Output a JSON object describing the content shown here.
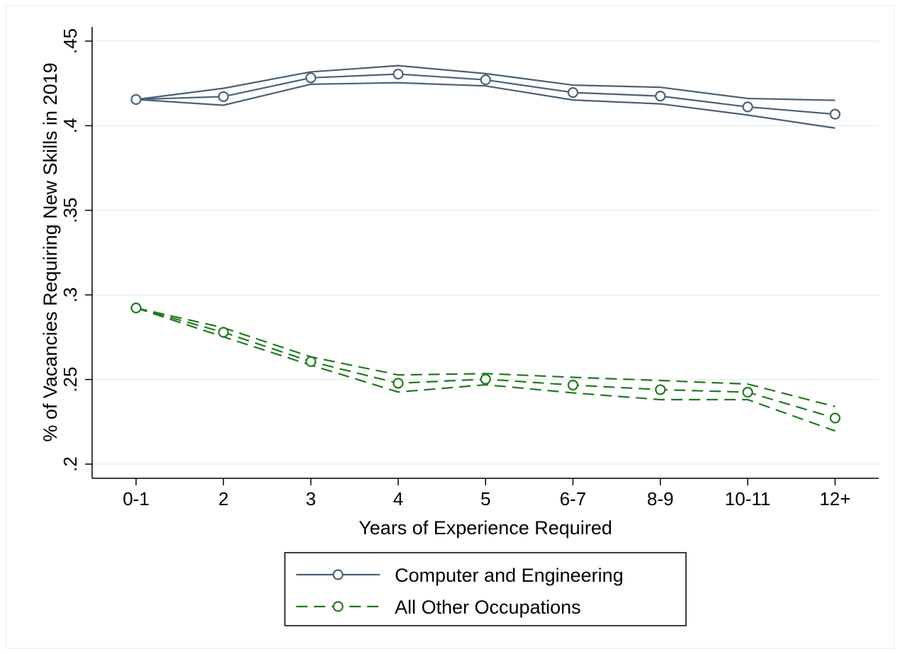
{
  "chart_data": {
    "type": "line",
    "title": "",
    "xlabel": "Years of Experience Required",
    "ylabel": "% of Vacancies Requiring New Skills in 2019",
    "categories": [
      "0-1",
      "2",
      "3",
      "4",
      "5",
      "6-7",
      "8-9",
      "10-11",
      "12+"
    ],
    "ylim": [
      0.195,
      0.455
    ],
    "yticks": [
      0.2,
      0.25,
      0.3,
      0.35,
      0.4,
      0.45
    ],
    "ytick_labels": [
      ".2",
      ".25",
      ".3",
      ".35",
      ".4",
      ".45"
    ],
    "grid": "horizontal",
    "legend_position": "bottom",
    "series": [
      {
        "name": "Computer and Engineering",
        "color": "#4a6177",
        "line_style": "solid",
        "marker": "hollow-circle",
        "values": [
          0.4155,
          0.4172,
          0.4283,
          0.4305,
          0.4271,
          0.4196,
          0.4175,
          0.4111,
          0.4068
        ],
        "ci_lower": [
          0.4155,
          0.4121,
          0.4245,
          0.4254,
          0.4235,
          0.4152,
          0.4129,
          0.4063,
          0.3986
        ],
        "ci_upper": [
          0.4155,
          0.4221,
          0.4318,
          0.4355,
          0.4308,
          0.424,
          0.4227,
          0.4161,
          0.415
        ]
      },
      {
        "name": "All Other Occupations",
        "color": "#1f7a1f",
        "line_style": "dashed",
        "marker": "hollow-circle",
        "values": [
          0.2923,
          0.2779,
          0.2606,
          0.2478,
          0.2502,
          0.2467,
          0.244,
          0.2425,
          0.2272
        ],
        "ci_lower": [
          0.2923,
          0.2752,
          0.2585,
          0.2426,
          0.2469,
          0.2421,
          0.2381,
          0.2381,
          0.2196
        ],
        "ci_upper": [
          0.2923,
          0.2806,
          0.2634,
          0.2527,
          0.2535,
          0.2513,
          0.2494,
          0.2473,
          0.234
        ]
      }
    ]
  }
}
